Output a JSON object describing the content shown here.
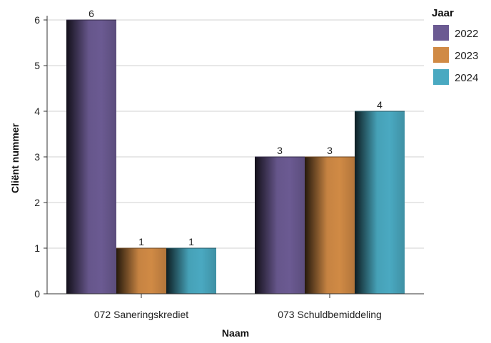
{
  "chart_data": {
    "type": "bar",
    "categories": [
      "072 Saneringskrediet",
      "073 Schuldbemiddeling"
    ],
    "series": [
      {
        "name": "2022",
        "values": [
          6,
          3
        ],
        "color": "#6b5a92"
      },
      {
        "name": "2023",
        "values": [
          1,
          3
        ],
        "color": "#d08a45"
      },
      {
        "name": "2024",
        "values": [
          1,
          4
        ],
        "color": "#4aa9c1"
      }
    ],
    "xlabel": "Naam",
    "ylabel": "Cliënt nummer",
    "ylim": [
      0,
      6
    ],
    "yticks": [
      0,
      1,
      2,
      3,
      4,
      5,
      6
    ],
    "grid": true,
    "legend": {
      "title": "Jaar",
      "position": "top-right"
    },
    "data_labels": true
  }
}
